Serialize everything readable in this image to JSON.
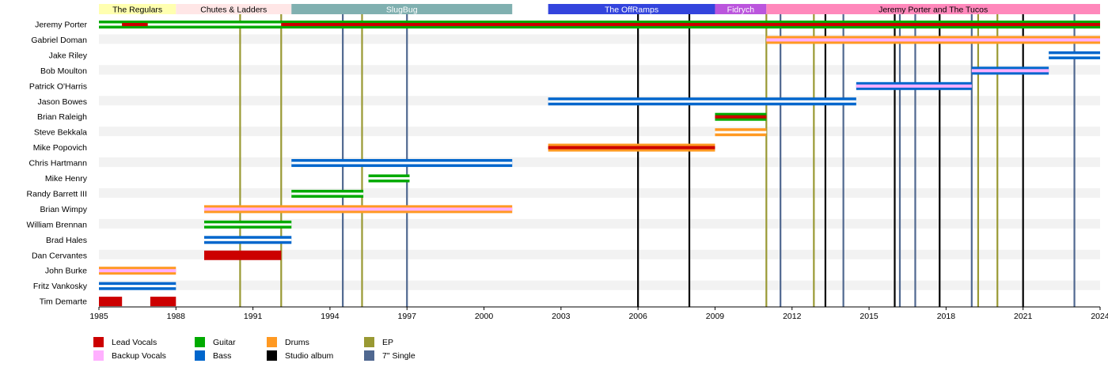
{
  "chart_data": {
    "type": "timeline",
    "x_range": [
      1985,
      2024
    ],
    "x_ticks": [
      "1985",
      "1988",
      "1991",
      "1994",
      "1997",
      "2000",
      "2003",
      "2006",
      "2009",
      "2012",
      "2015",
      "2018",
      "2021",
      "2024"
    ],
    "bands": [
      {
        "name": "The Regulars",
        "start": 1985,
        "end": 1988,
        "color": "#ffffb0",
        "text_color": "#000000"
      },
      {
        "name": "Chutes & Ladders",
        "start": 1988,
        "end": 1992.5,
        "color": "#ffe6e6",
        "text_color": "#000000"
      },
      {
        "name": "SlugBug",
        "start": 1992.5,
        "end": 2001.1,
        "color": "#80b0b0",
        "text_color": "#ffffff"
      },
      {
        "name": "The OffRamps",
        "start": 2002.5,
        "end": 2009,
        "color": "#3344dd",
        "text_color": "#ffffff"
      },
      {
        "name": "Fidrych",
        "start": 2009,
        "end": 2011,
        "color": "#bb55dd",
        "text_color": "#ffffff"
      },
      {
        "name": "Jeremy Porter and The Tucos",
        "start": 2011,
        "end": 2024,
        "color": "#ff88bb",
        "text_color": "#000000"
      }
    ],
    "role_colors": {
      "Lead Vocals": "#cc0000",
      "Backup Vocals": "#ffb0ff",
      "Guitar": "#00aa00",
      "Bass": "#0066cc",
      "Drums": "#ff9922",
      "EP": "#999933",
      "Studio album": "#000000",
      "7\" Single": "#506890"
    },
    "members": [
      {
        "name": "Jeremy Porter",
        "bars": [
          {
            "start": 1985,
            "end": 2024,
            "base": "Guitar"
          },
          {
            "start": 1985.9,
            "end": 1986.9,
            "base": "Guitar",
            "stripe": "Lead Vocals"
          },
          {
            "start": 1992.1,
            "end": 2024,
            "base": "Guitar",
            "stripe": "Lead Vocals"
          }
        ]
      },
      {
        "name": "Gabriel Doman",
        "bars": [
          {
            "start": 2011,
            "end": 2024,
            "base": "Drums",
            "stripe": "Backup Vocals"
          }
        ]
      },
      {
        "name": "Jake Riley",
        "bars": [
          {
            "start": 2022,
            "end": 2024,
            "base": "Bass"
          }
        ]
      },
      {
        "name": "Bob Moulton",
        "bars": [
          {
            "start": 2019,
            "end": 2022,
            "base": "Bass",
            "stripe": "Backup Vocals"
          }
        ]
      },
      {
        "name": "Patrick O'Harris",
        "bars": [
          {
            "start": 2014.5,
            "end": 2019,
            "base": "Bass",
            "stripe": "Backup Vocals"
          }
        ]
      },
      {
        "name": "Jason Bowes",
        "bars": [
          {
            "start": 2002.5,
            "end": 2014.5,
            "base": "Bass"
          }
        ]
      },
      {
        "name": "Brian Raleigh",
        "bars": [
          {
            "start": 2009,
            "end": 2011,
            "base": "Guitar",
            "stripe": "Lead Vocals"
          }
        ]
      },
      {
        "name": "Steve Bekkala",
        "bars": [
          {
            "start": 2009,
            "end": 2011,
            "base": "Drums"
          }
        ]
      },
      {
        "name": "Mike Popovich",
        "bars": [
          {
            "start": 2002.5,
            "end": 2009,
            "base": "Drums",
            "stripe": "Lead Vocals"
          }
        ]
      },
      {
        "name": "Chris Hartmann",
        "bars": [
          {
            "start": 1992.5,
            "end": 2001.1,
            "base": "Bass"
          }
        ]
      },
      {
        "name": "Mike Henry",
        "bars": [
          {
            "start": 1995.5,
            "end": 1997.1,
            "base": "Guitar"
          }
        ]
      },
      {
        "name": "Randy Barrett III",
        "bars": [
          {
            "start": 1992.5,
            "end": 1995.3,
            "base": "Guitar"
          }
        ]
      },
      {
        "name": "Brian Wimpy",
        "bars": [
          {
            "start": 1989.1,
            "end": 2001.1,
            "base": "Drums",
            "stripe": "Backup Vocals"
          }
        ]
      },
      {
        "name": "William Brennan",
        "bars": [
          {
            "start": 1989.1,
            "end": 1992.5,
            "base": "Guitar"
          }
        ]
      },
      {
        "name": "Brad Hales",
        "bars": [
          {
            "start": 1989.1,
            "end": 1992.5,
            "base": "Bass"
          }
        ]
      },
      {
        "name": "Dan Cervantes",
        "bars": [
          {
            "start": 1989.1,
            "end": 1992.1,
            "base": "Lead Vocals"
          }
        ]
      },
      {
        "name": "John Burke",
        "bars": [
          {
            "start": 1985,
            "end": 1988,
            "base": "Drums",
            "stripe": "Backup Vocals"
          }
        ]
      },
      {
        "name": "Fritz Vankosky",
        "bars": [
          {
            "start": 1985,
            "end": 1988,
            "base": "Bass"
          }
        ]
      },
      {
        "name": "Tim Demarte",
        "bars": [
          {
            "start": 1985,
            "end": 1985.9,
            "base": "Lead Vocals"
          },
          {
            "start": 1987,
            "end": 1988,
            "base": "Lead Vocals"
          }
        ]
      }
    ],
    "releases": [
      {
        "year": 1990.5,
        "type": "EP"
      },
      {
        "year": 1992.1,
        "type": "EP"
      },
      {
        "year": 1994.5,
        "type": "7\" Single"
      },
      {
        "year": 1995.25,
        "type": "EP"
      },
      {
        "year": 1997,
        "type": "7\" Single"
      },
      {
        "year": 2006,
        "type": "Studio album"
      },
      {
        "year": 2008,
        "type": "Studio album"
      },
      {
        "year": 2011,
        "type": "EP"
      },
      {
        "year": 2011.55,
        "type": "7\" Single"
      },
      {
        "year": 2012.85,
        "type": "EP"
      },
      {
        "year": 2013.3,
        "type": "Studio album"
      },
      {
        "year": 2014,
        "type": "7\" Single"
      },
      {
        "year": 2016,
        "type": "Studio album"
      },
      {
        "year": 2016.2,
        "type": "7\" Single"
      },
      {
        "year": 2016.8,
        "type": "7\" Single"
      },
      {
        "year": 2017.75,
        "type": "Studio album"
      },
      {
        "year": 2019,
        "type": "7\" Single"
      },
      {
        "year": 2019.25,
        "type": "EP"
      },
      {
        "year": 2020,
        "type": "EP"
      },
      {
        "year": 2021,
        "type": "Studio album"
      },
      {
        "year": 2023,
        "type": "7\" Single"
      }
    ],
    "legend": [
      [
        "Lead Vocals",
        "Backup Vocals"
      ],
      [
        "Guitar",
        "Bass"
      ],
      [
        "Drums",
        "Studio album"
      ],
      [
        "EP",
        "7\" Single"
      ]
    ],
    "legend_placement": "bottom"
  }
}
